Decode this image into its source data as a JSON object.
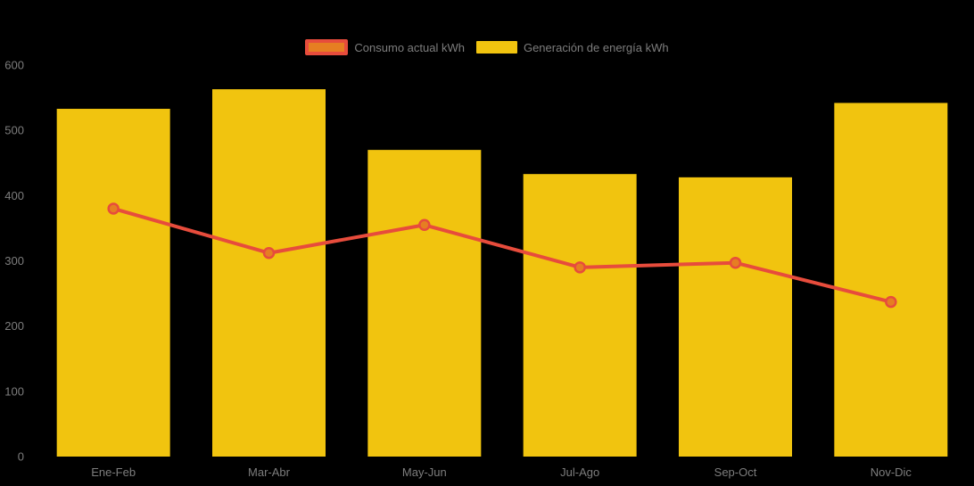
{
  "page": {
    "background": "#000000"
  },
  "chart_data": {
    "type": "combo-bar-line",
    "title": "",
    "categories": [
      "Ene-Feb",
      "Mar-Abr",
      "May-Jun",
      "Jul-Ago",
      "Sep-Oct",
      "Nov-Dic"
    ],
    "series": [
      {
        "name": "Consumo actual kWh",
        "type": "line",
        "values": [
          380,
          312,
          355,
          290,
          297,
          237
        ],
        "color": "#E74C3C",
        "marker_fill": "#E67E22"
      },
      {
        "name": "Generación de energía kWh",
        "type": "bar",
        "values": [
          533,
          563,
          470,
          433,
          428,
          542
        ],
        "color": "#F1C40F"
      }
    ],
    "ylim": [
      0,
      600
    ],
    "yticks": [
      0,
      100,
      200,
      300,
      400,
      500,
      600
    ],
    "axis_text_color": "#7D7D7D",
    "legend_position": "top-center",
    "grid": "off",
    "xlabel": "",
    "ylabel": ""
  }
}
